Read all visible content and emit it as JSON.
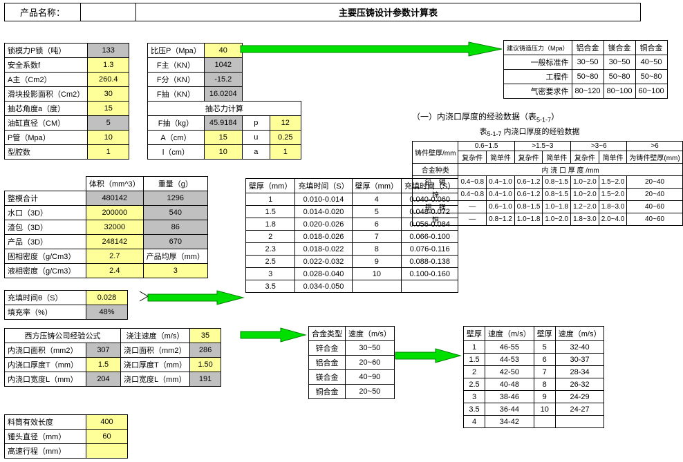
{
  "header": {
    "product_label": "产品名称：",
    "title": "主要压铸设计参数计算表"
  },
  "params1": {
    "rows": [
      {
        "l": "锁模力P锁（吨）",
        "v": "133",
        "cls": "gray"
      },
      {
        "l": "安全系数f",
        "v": "1.3",
        "cls": "yellow"
      },
      {
        "l": "A主（Cm2）",
        "v": "260.4",
        "cls": "yellow"
      },
      {
        "l": "滑块投影面积（Cm2）",
        "v": "30",
        "cls": "yellow"
      },
      {
        "l": "抽芯角度a（度）",
        "v": "15",
        "cls": "yellow"
      },
      {
        "l": "油缸直径（CM）",
        "v": "5",
        "cls": "gray"
      },
      {
        "l": "P管（Mpa）",
        "v": "10",
        "cls": "yellow"
      },
      {
        "l": "型腔数",
        "v": "1",
        "cls": "yellow"
      }
    ]
  },
  "params2": {
    "rows": [
      {
        "l": "比压P（Mpa）",
        "v": "40",
        "cls": "yellow"
      },
      {
        "l": "F主（KN）",
        "v": "1042",
        "cls": "gray"
      },
      {
        "l": "F分（KN）",
        "v": "-15.2",
        "cls": "gray"
      },
      {
        "l": "F抽（KN）",
        "v": "16.0204",
        "cls": "gray"
      }
    ],
    "core_title": "抽芯力计算",
    "core_rows": [
      {
        "l": "F抽（kg）",
        "v": "45.9184",
        "cls": "gray",
        "l2": "p",
        "v2": "12",
        "cls2": "yellow"
      },
      {
        "l": "A（cm）",
        "v": "15",
        "cls": "yellow",
        "l2": "u",
        "v2": "0.25",
        "cls2": "yellow"
      },
      {
        "l": "l（cm）",
        "v": "10",
        "cls": "yellow",
        "l2": "a",
        "v2": "1",
        "cls2": "yellow"
      }
    ]
  },
  "alloy_pressure": {
    "header": [
      "建议铸造压力（Mpa）",
      "铝合金",
      "镁合金",
      "铜合金"
    ],
    "rows": [
      [
        "一般标准件",
        "30~50",
        "30~50",
        "40~50"
      ],
      [
        "工程件",
        "50~80",
        "50~80",
        "50~80"
      ],
      [
        "气密要求件",
        "80~120",
        "80~100",
        "60~100"
      ]
    ]
  },
  "gate_ref": {
    "title": "（一）内浇口厚度的经验数据（表",
    "sub": "5-1-7",
    "tail": "）",
    "caption_prefix": "表",
    "caption_sub": "5-1-7",
    "caption_tail": " 内浇口厚度的经验数据",
    "h1": "铸件壁厚/mm",
    "ranges": [
      "0.6~1.5",
      ">1.5~3",
      ">3~6",
      ">6"
    ],
    "subheads": [
      "复杂件",
      "简单件",
      "复杂件",
      "简单件",
      "复杂件",
      "简单件",
      "为铸件壁厚(mm)"
    ],
    "group": "内  浇  口  厚  度     /mm",
    "side": "合金种类",
    "rows": [
      {
        "name": "铅、锡",
        "a": "0.4~0.8",
        "b": "0.4~1.0",
        "c": "0.6~1.2",
        "d": "0.8~1.5",
        "e": "1.0~2.0",
        "f": "1.5~2.0",
        "g": "20~40"
      },
      {
        "name": "锌",
        "a": "0.4~0.8",
        "b": "0.4~1.0",
        "c": "0.6~1.2",
        "d": "0.8~1.5",
        "e": "1.0~2.0",
        "f": "1.5~2.0",
        "g": "20~40"
      },
      {
        "name": "铝、镁",
        "a": "—",
        "b": "0.6~1.0",
        "c": "0.8~1.5",
        "d": "1.0~1.8",
        "e": "1.2~2.0",
        "f": "1.8~3.0",
        "g": "40~60"
      },
      {
        "name": "铜",
        "a": "—",
        "b": "0.8~1.2",
        "c": "1.0~1.8",
        "d": "1.0~2.0",
        "e": "1.8~3.0",
        "f": "2.0~4.0",
        "g": "40~60"
      }
    ]
  },
  "mass": {
    "head": [
      "",
      "体积（mm^3）",
      "重量（g）"
    ],
    "rows": [
      [
        "整模合计",
        "480142",
        "1296",
        "gray",
        "gray"
      ],
      [
        "水口（3D）",
        "200000",
        "540",
        "yellow",
        "gray"
      ],
      [
        "渣包（3D）",
        "32000",
        "86",
        "yellow",
        "gray"
      ],
      [
        "产品（3D）",
        "248142",
        "670",
        "yellow",
        "gray"
      ],
      [
        "固相密度（g/Cm3）",
        "2.7",
        "产品均厚（mm）",
        "yellow",
        ""
      ],
      [
        "液相密度（g/Cm3）",
        "2.4",
        "3",
        "yellow",
        "yellow"
      ]
    ]
  },
  "fill": {
    "rows": [
      [
        "充填时间θ（S）",
        "0.028",
        "yellow"
      ],
      [
        "填充率（%）",
        "48%",
        "gray"
      ]
    ]
  },
  "wallfill": {
    "head": [
      "壁厚（mm）",
      "充填时间（S）",
      "壁厚（mm）",
      "充填时间（S）"
    ],
    "rows": [
      [
        "1",
        "0.010-0.014",
        "4",
        "0.040-0.060"
      ],
      [
        "1.5",
        "0.014-0.020",
        "5",
        "0.048-0.072"
      ],
      [
        "1.8",
        "0.020-0.026",
        "6",
        "0.056-0.084"
      ],
      [
        "2",
        "0.018-0.026",
        "7",
        "0.066-0.100"
      ],
      [
        "2.3",
        "0.018-0.022",
        "8",
        "0.076-0.116"
      ],
      [
        "2.5",
        "0.022-0.032",
        "9",
        "0.088-0.138"
      ],
      [
        "3",
        "0.028-0.040",
        "10",
        "0.100-0.160"
      ],
      [
        "3.5",
        "0.034-0.050",
        "",
        ""
      ]
    ]
  },
  "west": {
    "title": "西方压铸公司经验公式",
    "c2h": "浇注速度（m/s）",
    "c2v": "35",
    "rows": [
      [
        "内浇口面积（mm2）",
        "307",
        "gray",
        "浇口面积（mm2）",
        "286",
        "gray"
      ],
      [
        "内浇口厚度T（mm）",
        "1.5",
        "yellow",
        "浇口厚度T（mm）",
        "1.50",
        "yellow"
      ],
      [
        "内浇口宽度L（mm）",
        "204",
        "gray",
        "浇口宽度L（mm）",
        "191",
        "gray"
      ]
    ]
  },
  "alloy_speed": {
    "head": [
      "合金类型",
      "速度（m/s）"
    ],
    "rows": [
      [
        "锌合金",
        "30~50"
      ],
      [
        "铝合金",
        "20~60"
      ],
      [
        "镁合金",
        "40~90"
      ],
      [
        "铜合金",
        "20~50"
      ]
    ]
  },
  "wall_speed": {
    "head": [
      "壁厚",
      "速度（m/s）",
      "壁厚",
      "速度（m/s）"
    ],
    "rows": [
      [
        "1",
        "46-55",
        "5",
        "32-40"
      ],
      [
        "1.5",
        "44-53",
        "6",
        "30-37"
      ],
      [
        "2",
        "42-50",
        "7",
        "28-34"
      ],
      [
        "2.5",
        "40-48",
        "8",
        "26-32"
      ],
      [
        "3",
        "38-46",
        "9",
        "24-29"
      ],
      [
        "3.5",
        "36-44",
        "10",
        "24-27"
      ],
      [
        "4",
        "34-42",
        "",
        ""
      ]
    ]
  },
  "bottom": {
    "rows": [
      [
        "料筒有效长度",
        "400",
        "yellow"
      ],
      [
        "锤头直径（mm）",
        "60",
        "yellow"
      ],
      [
        "高速行程（mm）",
        "",
        "yellow"
      ]
    ]
  },
  "arrows": {
    "fill": "#00cc00",
    "stroke": "#006600"
  }
}
